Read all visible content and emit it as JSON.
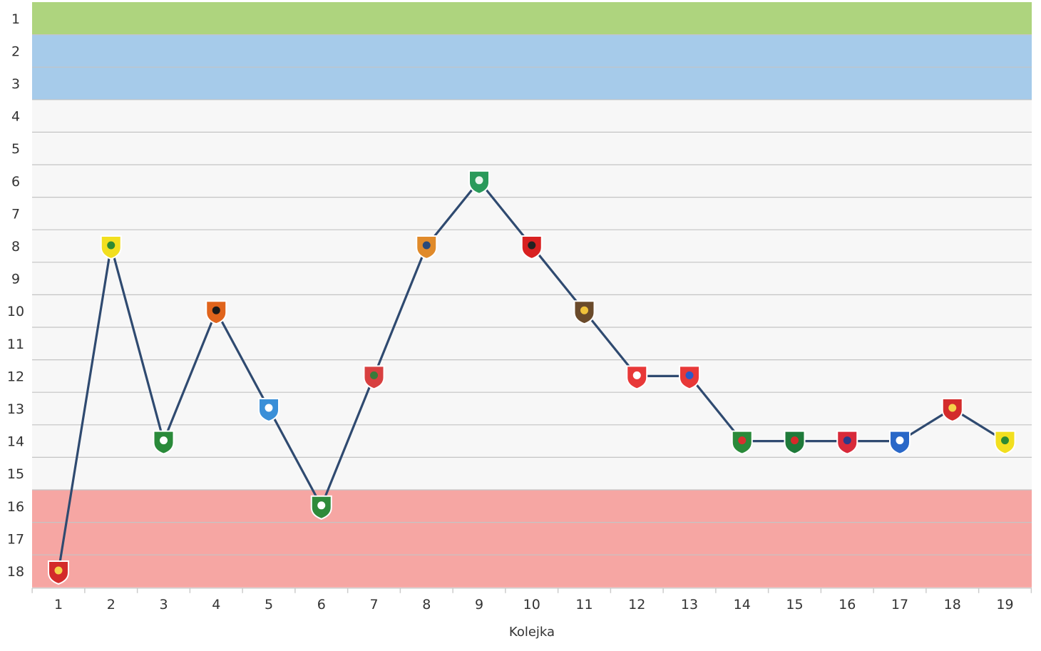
{
  "chart_data": {
    "type": "line",
    "xlabel": "Kolejka",
    "ylabel": "",
    "x": [
      1,
      2,
      3,
      4,
      5,
      6,
      7,
      8,
      9,
      10,
      11,
      12,
      13,
      14,
      15,
      16,
      17,
      18,
      19
    ],
    "xlim": [
      1,
      19
    ],
    "ylim": [
      18,
      1
    ],
    "y_reversed": true,
    "y_ticks": [
      1,
      2,
      3,
      4,
      5,
      6,
      7,
      8,
      9,
      10,
      11,
      12,
      13,
      14,
      15,
      16,
      17,
      18
    ],
    "grid": true,
    "bands": [
      {
        "from": 1,
        "to": 1,
        "color": "#aed47e"
      },
      {
        "from": 2,
        "to": 3,
        "color": "#a6cbea"
      },
      {
        "from": 4,
        "to": 15,
        "color": "#f7f7f7"
      },
      {
        "from": 16,
        "to": 18,
        "color": "#f6a6a3"
      }
    ],
    "series": [
      {
        "values": [
          18,
          8,
          14,
          10,
          13,
          16,
          12,
          8,
          6,
          8,
          10,
          12,
          12,
          14,
          14,
          14,
          14,
          13,
          14
        ],
        "color": "#2f4a70",
        "markers": [
          {
            "icon": "club-crest-red-white-icon",
            "colors": [
              "#d32b2b",
              "#f5d24a"
            ]
          },
          {
            "icon": "club-crest-yellow-green-icon",
            "colors": [
              "#f2df1f",
              "#2d8a33"
            ]
          },
          {
            "icon": "club-crest-legia-icon",
            "colors": [
              "#2a8a3a",
              "#ffffff"
            ]
          },
          {
            "icon": "club-crest-black-orange-icon",
            "colors": [
              "#e0641c",
              "#1a1a1a"
            ]
          },
          {
            "icon": "club-crest-blue-white-stripes-icon",
            "colors": [
              "#3a8fd8",
              "#ffffff"
            ]
          },
          {
            "icon": "club-crest-green-white-icon",
            "colors": [
              "#2f8a3a",
              "#ffffff"
            ]
          },
          {
            "icon": "club-crest-piast-icon",
            "colors": [
              "#d84040",
              "#3a7a3a"
            ]
          },
          {
            "icon": "club-crest-orange-navy-icon",
            "colors": [
              "#e08a2a",
              "#2a4a7a"
            ]
          },
          {
            "icon": "club-crest-green-round-icon",
            "colors": [
              "#2a9a5a",
              "#e8f4ec"
            ]
          },
          {
            "icon": "club-crest-red-black-icon",
            "colors": [
              "#d82020",
              "#222222"
            ]
          },
          {
            "icon": "club-crest-gear-yellow-icon",
            "colors": [
              "#6a4a2a",
              "#f0c23a"
            ]
          },
          {
            "icon": "club-crest-red-white-flag-icon",
            "colors": [
              "#e83838",
              "#ffffff"
            ]
          },
          {
            "icon": "club-crest-red-blue-pennant-icon",
            "colors": [
              "#e83838",
              "#2a5ac8"
            ]
          },
          {
            "icon": "club-crest-green-red-pennant-icon",
            "colors": [
              "#2a8a3a",
              "#d83030"
            ]
          },
          {
            "icon": "club-crest-green-oval-icon",
            "colors": [
              "#1f7a3a",
              "#d82a2a"
            ]
          },
          {
            "icon": "club-crest-red-blue-shield-icon",
            "colors": [
              "#d82a3a",
              "#2a3a8a"
            ]
          },
          {
            "icon": "club-crest-blue-white-shield-icon",
            "colors": [
              "#2a68c8",
              "#ffffff"
            ]
          },
          {
            "icon": "club-crest-red-white-icon",
            "colors": [
              "#d32b2b",
              "#f5d24a"
            ]
          },
          {
            "icon": "club-crest-yellow-green-icon",
            "colors": [
              "#f2df1f",
              "#2d8a33"
            ]
          }
        ]
      }
    ]
  }
}
